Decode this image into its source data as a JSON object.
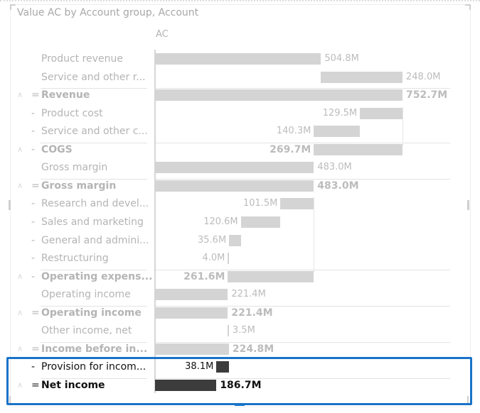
{
  "visual": {
    "title": "Value AC by Account group, Account",
    "column_header": "AC"
  },
  "chart_data": {
    "type": "bar",
    "subtype": "waterfall",
    "title": "Value AC by Account group, Account",
    "series_name": "AC",
    "unit": "M",
    "xlim": [
      0,
      760
    ],
    "rows": [
      {
        "label": "Product revenue",
        "sign": "",
        "kind": "delta",
        "start": 0,
        "end": 504.8,
        "value_label": "504.8M",
        "bold": false,
        "caret": false,
        "label_side": "right"
      },
      {
        "label": "Service and other r...",
        "sign": "",
        "kind": "delta",
        "start": 504.8,
        "end": 752.7,
        "value_label": "248.0M",
        "bold": false,
        "caret": false,
        "label_side": "right"
      },
      {
        "label": "Revenue",
        "sign": "=",
        "kind": "total",
        "start": 0,
        "end": 752.7,
        "value_label": "752.7M",
        "bold": true,
        "caret": true,
        "label_side": "right"
      },
      {
        "label": "Product cost",
        "sign": "-",
        "kind": "delta",
        "start": 623.2,
        "end": 752.7,
        "value_label": "129.5M",
        "bold": false,
        "caret": false,
        "label_side": "left"
      },
      {
        "label": "Service and other c...",
        "sign": "-",
        "kind": "delta",
        "start": 483.0,
        "end": 623.2,
        "value_label": "140.3M",
        "bold": false,
        "caret": false,
        "label_side": "left"
      },
      {
        "label": "COGS",
        "sign": "-",
        "kind": "subtotal",
        "start": 483.0,
        "end": 752.7,
        "value_label": "269.7M",
        "bold": true,
        "caret": true,
        "label_side": "left"
      },
      {
        "label": "Gross margin",
        "sign": "",
        "kind": "delta",
        "start": 0,
        "end": 483.0,
        "value_label": "483.0M",
        "bold": false,
        "caret": false,
        "label_side": "right"
      },
      {
        "label": "Gross margin",
        "sign": "=",
        "kind": "total",
        "start": 0,
        "end": 483.0,
        "value_label": "483.0M",
        "bold": true,
        "caret": true,
        "label_side": "right"
      },
      {
        "label": "Research and devel...",
        "sign": "-",
        "kind": "delta",
        "start": 381.5,
        "end": 483.0,
        "value_label": "101.5M",
        "bold": false,
        "caret": false,
        "label_side": "left"
      },
      {
        "label": "Sales and marketing",
        "sign": "-",
        "kind": "delta",
        "start": 260.9,
        "end": 381.5,
        "value_label": "120.6M",
        "bold": false,
        "caret": false,
        "label_side": "left"
      },
      {
        "label": "General and admini...",
        "sign": "-",
        "kind": "delta",
        "start": 225.3,
        "end": 260.9,
        "value_label": "35.6M",
        "bold": false,
        "caret": false,
        "label_side": "left"
      },
      {
        "label": "Restructuring",
        "sign": "-",
        "kind": "delta",
        "start": 221.3,
        "end": 225.3,
        "value_label": "4.0M",
        "bold": false,
        "caret": false,
        "label_side": "left"
      },
      {
        "label": "Operating expens...",
        "sign": "-",
        "kind": "subtotal",
        "start": 221.4,
        "end": 483.0,
        "value_label": "261.6M",
        "bold": true,
        "caret": true,
        "label_side": "left"
      },
      {
        "label": "Operating income",
        "sign": "",
        "kind": "delta",
        "start": 0,
        "end": 221.4,
        "value_label": "221.4M",
        "bold": false,
        "caret": false,
        "label_side": "right"
      },
      {
        "label": "Operating income",
        "sign": "=",
        "kind": "total",
        "start": 0,
        "end": 221.4,
        "value_label": "221.4M",
        "bold": true,
        "caret": true,
        "label_side": "right"
      },
      {
        "label": "Other income, net",
        "sign": "",
        "kind": "delta",
        "start": 221.4,
        "end": 224.8,
        "value_label": "3.5M",
        "bold": false,
        "caret": false,
        "label_side": "right"
      },
      {
        "label": "Income before in...",
        "sign": "=",
        "kind": "total",
        "start": 0,
        "end": 224.8,
        "value_label": "224.8M",
        "bold": true,
        "caret": true,
        "label_side": "right"
      },
      {
        "label": "Provision for incom...",
        "sign": "-",
        "kind": "delta",
        "start": 186.7,
        "end": 224.8,
        "value_label": "38.1M",
        "bold": false,
        "caret": false,
        "label_side": "left",
        "highlight": true
      },
      {
        "label": "Net income",
        "sign": "=",
        "kind": "total",
        "start": 0,
        "end": 186.7,
        "value_label": "186.7M",
        "bold": true,
        "caret": true,
        "label_side": "right",
        "highlight": true
      }
    ]
  },
  "icons": {
    "caret": "^",
    "resize_handle": "||"
  },
  "colors": {
    "bar": "#d4d4d4",
    "bar_highlight": "#3c3c3c",
    "selection_border": "#1a73c9",
    "text_dim": "#b4b4b4",
    "text_highlight": "#111111"
  }
}
